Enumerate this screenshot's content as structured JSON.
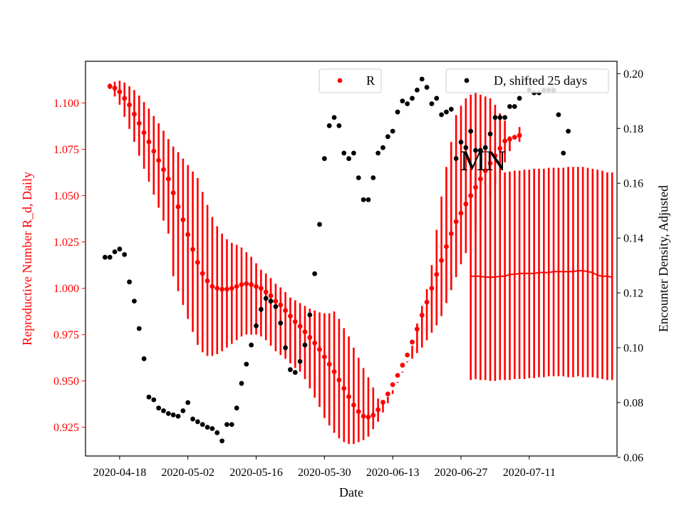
{
  "chart_data": {
    "type": "scatter",
    "xlabel": "Date",
    "ylabel_left": "Reproductive Number R_d, Daily",
    "ylabel_right": "Encounter Density, Adjusted",
    "annotation": "MN",
    "x_ticks": [
      "2020-04-18",
      "2020-05-02",
      "2020-05-16",
      "2020-05-30",
      "2020-06-13",
      "2020-06-27",
      "2020-07-11"
    ],
    "x_range": [
      "2020-04-11",
      "2020-07-29"
    ],
    "y_left_ticks": [
      "0.925",
      "0.950",
      "0.975",
      "1.000",
      "1.025",
      "1.050",
      "1.075",
      "1.100"
    ],
    "y_left_range": [
      0.9095,
      1.1225
    ],
    "y_right_ticks": [
      "0.06",
      "0.08",
      "0.10",
      "0.12",
      "0.14",
      "0.16",
      "0.18",
      "0.20"
    ],
    "y_right_range": [
      0.0605,
      0.2045
    ],
    "legend_left": {
      "label": "R",
      "color": "#ff0000",
      "placement": "top-center"
    },
    "legend_right": {
      "label": "D, shifted 25 days",
      "color": "#000000",
      "placement": "top-right"
    },
    "colors": {
      "R": "#ff0000",
      "D": "#000000",
      "left_axis": "#ff0000",
      "right_axis": "#000000"
    },
    "series_R": {
      "name": "R",
      "start_date": "2020-04-16",
      "values": [
        1.109,
        1.108,
        1.106,
        1.1025,
        1.099,
        1.094,
        1.089,
        1.084,
        1.079,
        1.074,
        1.069,
        1.064,
        1.059,
        1.0515,
        1.044,
        1.037,
        1.029,
        1.021,
        1.014,
        1.008,
        1.004,
        1.001,
        1.0,
        0.9995,
        0.9995,
        1.0,
        1.001,
        1.002,
        1.0025,
        1.002,
        1.001,
        1.0,
        0.998,
        0.996,
        0.993,
        0.991,
        0.988,
        0.985,
        0.982,
        0.9795,
        0.9765,
        0.9735,
        0.9705,
        0.967,
        0.963,
        0.959,
        0.955,
        0.9505,
        0.946,
        0.9415,
        0.937,
        0.9335,
        0.931,
        0.9305,
        0.9315,
        0.9345,
        0.9385,
        0.943,
        0.948,
        0.953,
        0.9585,
        0.964,
        0.971,
        0.978,
        0.9855,
        0.9925,
        1.0,
        1.0075,
        1.015,
        1.0225,
        1.0295,
        1.036,
        1.0405,
        1.0455,
        1.05,
        1.0545,
        1.059,
        1.0635,
        1.0675,
        1.0715,
        1.0755,
        1.0795,
        1.0805,
        1.0815,
        1.0825
      ],
      "error_low": [
        1.1075,
        1.1035,
        1.099,
        1.0925,
        1.086,
        1.079,
        1.0715,
        1.0645,
        1.0575,
        1.0505,
        1.0435,
        1.0365,
        1.0295,
        1.0065,
        0.9985,
        0.991,
        0.9835,
        0.9765,
        0.9695,
        0.9655,
        0.9635,
        0.9635,
        0.9645,
        0.966,
        0.968,
        0.97,
        0.972,
        0.974,
        0.975,
        0.975,
        0.975,
        0.974,
        0.972,
        0.969,
        0.966,
        0.964,
        0.962,
        0.9595,
        0.957,
        0.955,
        0.951,
        0.946,
        0.941,
        0.936,
        0.93,
        0.926,
        0.922,
        0.919,
        0.917,
        0.916,
        0.916,
        0.917,
        0.918,
        0.92,
        0.924,
        0.928,
        0.933,
        0.938,
        0.943,
        0.949,
        0.955,
        0.96,
        0.962,
        0.965,
        0.968,
        0.972,
        0.976,
        0.98,
        0.985,
        0.992,
        0.999,
        1.006,
        1.013,
        1.019,
        1.025,
        1.031,
        1.037,
        1.043,
        1.049,
        1.056,
        1.062,
        1.068,
        1.074,
        1.081,
        1.087
      ],
      "error_high": [
        1.1105,
        1.1115,
        1.112,
        1.111,
        1.109,
        1.107,
        1.104,
        1.1005,
        1.097,
        1.093,
        1.089,
        1.085,
        1.0805,
        1.0765,
        1.0735,
        1.07,
        1.0665,
        1.063,
        1.0595,
        1.052,
        1.045,
        1.0385,
        1.0335,
        1.0295,
        1.0265,
        1.0245,
        1.0235,
        1.022,
        1.0195,
        1.017,
        1.0135,
        1.01,
        1.008,
        1.0055,
        1.0025,
        1.0005,
        0.998,
        0.995,
        0.9935,
        0.992,
        0.9905,
        0.989,
        0.988,
        0.987,
        0.9865,
        0.9865,
        0.9875,
        0.9835,
        0.9785,
        0.974,
        0.968,
        0.9625,
        0.957,
        0.952,
        0.9465,
        0.9405,
        0.9385,
        0.9415,
        0.945,
        0.9495,
        0.9545,
        0.9605,
        0.969,
        0.981,
        0.9905,
        0.9995,
        1.0125,
        1.0315,
        1.0495,
        1.0655,
        1.079,
        1.0935,
        1.0985,
        1.1025,
        1.1045,
        1.1055,
        1.1045,
        1.1035,
        1.1025,
        1.099,
        1.0945,
        1.0905,
        1.082,
        1.0805,
        1.079
      ]
    },
    "series_R_projection": {
      "name": "R",
      "start_date": "2020-06-29",
      "values": [
        1.0065,
        1.0065,
        1.0065,
        1.006,
        1.006,
        1.006,
        1.0065,
        1.0065,
        1.0075,
        1.0075,
        1.008,
        1.008,
        1.008,
        1.008,
        1.0085,
        1.0085,
        1.0085,
        1.009,
        1.009,
        1.009,
        1.009,
        1.009,
        1.0095,
        1.0095,
        1.009,
        1.0085,
        1.007,
        1.0065,
        1.0065,
        1.006
      ],
      "error_low": [
        0.9505,
        0.951,
        0.9505,
        0.9505,
        0.95,
        0.95,
        0.9505,
        0.9505,
        0.9505,
        0.951,
        0.951,
        0.951,
        0.9515,
        0.9515,
        0.952,
        0.952,
        0.9525,
        0.9525,
        0.9525,
        0.9525,
        0.952,
        0.952,
        0.9525,
        0.952,
        0.952,
        0.952,
        0.9515,
        0.951,
        0.9505,
        0.9505
      ],
      "error_high": [
        1.0625,
        1.063,
        1.063,
        1.0625,
        1.063,
        1.063,
        1.063,
        1.0625,
        1.063,
        1.0635,
        1.0635,
        1.064,
        1.064,
        1.0645,
        1.0645,
        1.0645,
        1.065,
        1.065,
        1.065,
        1.065,
        1.0655,
        1.0655,
        1.0655,
        1.0655,
        1.065,
        1.0645,
        1.064,
        1.0635,
        1.0625,
        1.0625
      ]
    },
    "series_D": {
      "name": "D, shifted 25 days",
      "points": [
        [
          "2020-04-15",
          0.133
        ],
        [
          "2020-04-16",
          0.133
        ],
        [
          "2020-04-17",
          0.135
        ],
        [
          "2020-04-18",
          0.136
        ],
        [
          "2020-04-19",
          0.134
        ],
        [
          "2020-04-20",
          0.124
        ],
        [
          "2020-04-21",
          0.117
        ],
        [
          "2020-04-22",
          0.107
        ],
        [
          "2020-04-23",
          0.096
        ],
        [
          "2020-04-24",
          0.082
        ],
        [
          "2020-04-25",
          0.081
        ],
        [
          "2020-04-26",
          0.078
        ],
        [
          "2020-04-27",
          0.077
        ],
        [
          "2020-04-28",
          0.076
        ],
        [
          "2020-04-29",
          0.0755
        ],
        [
          "2020-04-30",
          0.075
        ],
        [
          "2020-05-01",
          0.077
        ],
        [
          "2020-05-02",
          0.08
        ],
        [
          "2020-05-03",
          0.074
        ],
        [
          "2020-05-04",
          0.073
        ],
        [
          "2020-05-05",
          0.072
        ],
        [
          "2020-05-06",
          0.071
        ],
        [
          "2020-05-07",
          0.0705
        ],
        [
          "2020-05-08",
          0.069
        ],
        [
          "2020-05-09",
          0.066
        ],
        [
          "2020-05-10",
          0.072
        ],
        [
          "2020-05-11",
          0.072
        ],
        [
          "2020-05-12",
          0.078
        ],
        [
          "2020-05-13",
          0.087
        ],
        [
          "2020-05-14",
          0.094
        ],
        [
          "2020-05-15",
          0.101
        ],
        [
          "2020-05-16",
          0.108
        ],
        [
          "2020-05-17",
          0.114
        ],
        [
          "2020-05-18",
          0.118
        ],
        [
          "2020-05-19",
          0.117
        ],
        [
          "2020-05-20",
          0.115
        ],
        [
          "2020-05-21",
          0.109
        ],
        [
          "2020-05-22",
          0.1
        ],
        [
          "2020-05-23",
          0.092
        ],
        [
          "2020-05-24",
          0.091
        ],
        [
          "2020-05-25",
          0.095
        ],
        [
          "2020-05-26",
          0.101
        ],
        [
          "2020-05-27",
          0.112
        ],
        [
          "2020-05-28",
          0.127
        ],
        [
          "2020-05-29",
          0.145
        ],
        [
          "2020-05-30",
          0.169
        ],
        [
          "2020-05-31",
          0.181
        ],
        [
          "2020-06-01",
          0.184
        ],
        [
          "2020-06-02",
          0.181
        ],
        [
          "2020-06-03",
          0.171
        ],
        [
          "2020-06-04",
          0.169
        ],
        [
          "2020-06-05",
          0.171
        ],
        [
          "2020-06-06",
          0.162
        ],
        [
          "2020-06-07",
          0.154
        ],
        [
          "2020-06-08",
          0.154
        ],
        [
          "2020-06-09",
          0.162
        ],
        [
          "2020-06-10",
          0.171
        ],
        [
          "2020-06-11",
          0.173
        ],
        [
          "2020-06-12",
          0.177
        ],
        [
          "2020-06-13",
          0.179
        ],
        [
          "2020-06-14",
          0.186
        ],
        [
          "2020-06-15",
          0.19
        ],
        [
          "2020-06-16",
          0.189
        ],
        [
          "2020-06-17",
          0.191
        ],
        [
          "2020-06-18",
          0.194
        ],
        [
          "2020-06-19",
          0.198
        ],
        [
          "2020-06-20",
          0.195
        ],
        [
          "2020-06-21",
          0.189
        ],
        [
          "2020-06-22",
          0.191
        ],
        [
          "2020-06-23",
          0.185
        ],
        [
          "2020-06-24",
          0.186
        ],
        [
          "2020-06-25",
          0.187
        ],
        [
          "2020-06-26",
          0.169
        ],
        [
          "2020-06-27",
          0.175
        ],
        [
          "2020-06-28",
          0.173
        ],
        [
          "2020-06-29",
          0.179
        ],
        [
          "2020-06-30",
          0.172
        ],
        [
          "2020-07-01",
          0.172
        ],
        [
          "2020-07-02",
          0.173
        ],
        [
          "2020-07-03",
          0.178
        ],
        [
          "2020-07-04",
          0.184
        ],
        [
          "2020-07-05",
          0.184
        ],
        [
          "2020-07-06",
          0.184
        ],
        [
          "2020-07-07",
          0.188
        ],
        [
          "2020-07-08",
          0.188
        ],
        [
          "2020-07-09",
          0.191
        ],
        [
          "2020-07-10",
          0.198
        ],
        [
          "2020-07-11",
          0.194
        ],
        [
          "2020-07-12",
          0.193
        ],
        [
          "2020-07-13",
          0.193
        ],
        [
          "2020-07-14",
          0.194
        ],
        [
          "2020-07-15",
          0.194
        ],
        [
          "2020-07-16",
          0.194
        ],
        [
          "2020-07-17",
          0.185
        ],
        [
          "2020-07-18",
          0.171
        ],
        [
          "2020-07-19",
          0.179
        ]
      ]
    }
  }
}
